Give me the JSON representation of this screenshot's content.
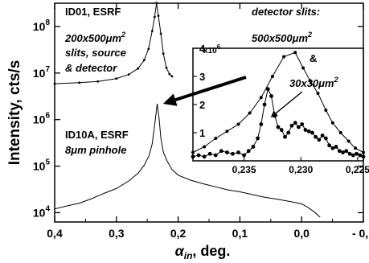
{
  "chart_data": [
    {
      "type": "line",
      "ylabel": "Intensity, cts/s",
      "xlabel_main": "α",
      "xlabel_sub": "in",
      "xlabel_rest": ", deg.",
      "xlim": [
        0.4,
        -0.1
      ],
      "ylim_log10": [
        3.8,
        8.5
      ],
      "x_ticks": [
        {
          "v": 0.4,
          "label": "0,4"
        },
        {
          "v": 0.3,
          "label": "0,3"
        },
        {
          "v": 0.2,
          "label": "0,2"
        },
        {
          "v": 0.1,
          "label": "0,1"
        },
        {
          "v": 0.0,
          "label": "0,0"
        },
        {
          "v": -0.1,
          "label": "- 0,1"
        }
      ],
      "y_ticks": [
        {
          "exp": 4,
          "label": "10",
          "sup": "4"
        },
        {
          "exp": 5,
          "label": "10",
          "sup": "5"
        },
        {
          "exp": 6,
          "label": "10",
          "sup": "6"
        },
        {
          "exp": 7,
          "label": "10",
          "sup": "7"
        },
        {
          "exp": 8,
          "label": "10",
          "sup": "8"
        }
      ],
      "annotations": {
        "id01_title": "ID01, ESRF",
        "id01_line1": "200x500",
        "id01_mu": "μ",
        "id01_m": "m",
        "id01_sup": "2",
        "id01_line2": "slits, source",
        "id01_line3": "& detector",
        "id10_title": "ID10A, ESRF",
        "id10_line1": "8",
        "id10_mu": "μ",
        "id10_line1b": "m pinhole"
      },
      "series": [
        {
          "label": "ID01",
          "x": [
            0.4,
            0.36,
            0.33,
            0.3,
            0.28,
            0.265,
            0.255,
            0.248,
            0.242,
            0.238,
            0.235,
            0.232,
            0.228,
            0.224,
            0.219,
            0.214,
            0.21
          ],
          "y": [
            5900000.0,
            6200000.0,
            6600000.0,
            7600000.0,
            9300000.0,
            12500000.0,
            19000000.0,
            33000000.0,
            80000000.0,
            160000000.0,
            320000000.0,
            170000000.0,
            70000000.0,
            26000000.0,
            13000000.0,
            9500000.0,
            8500000.0
          ]
        },
        {
          "label": "ID10A",
          "x": [
            0.4,
            0.38,
            0.36,
            0.34,
            0.32,
            0.3,
            0.28,
            0.265,
            0.255,
            0.247,
            0.242,
            0.239,
            0.236,
            0.234,
            0.231,
            0.228,
            0.224,
            0.218,
            0.21,
            0.2,
            0.18,
            0.16,
            0.14,
            0.12,
            0.1,
            0.08,
            0.06,
            0.04,
            0.02,
            0.0,
            -0.01,
            -0.02,
            -0.03
          ],
          "y": [
            12000.0,
            14000.0,
            16000.0,
            20000.0,
            26000.0,
            33000.0,
            48000.0,
            70000.0,
            105000.0,
            170000.0,
            300000.0,
            600000.0,
            1300000.0,
            2200000.0,
            1100000.0,
            400000.0,
            200000.0,
            130000.0,
            85000.0,
            64000.0,
            50000.0,
            42000.0,
            36000.0,
            31000.0,
            28000.0,
            24500.0,
            21500.0,
            19500.0,
            17500.0,
            15500.0,
            13000.0,
            10500.0,
            8000.0
          ]
        }
      ]
    },
    {
      "type": "line",
      "title_line": "detector slits:",
      "legend_a": "500x500",
      "legend_b": "30x30",
      "legend_mu": "μ",
      "legend_m": "m",
      "legend_sup": "2",
      "ampersand": "&",
      "y_multiplier_pre": "x10",
      "y_multiplier_exp": "6",
      "xlim": [
        0.2395,
        0.2245
      ],
      "ylim": [
        0,
        4
      ],
      "x_ticks": [
        {
          "v": 0.235,
          "label": "0,235"
        },
        {
          "v": 0.23,
          "label": "0,230"
        },
        {
          "v": 0.225,
          "label": "0,225"
        }
      ],
      "y_ticks": [
        {
          "v": 1,
          "label": "1"
        },
        {
          "v": 2,
          "label": "2"
        },
        {
          "v": 3,
          "label": "3"
        },
        {
          "v": 4,
          "label": "4"
        }
      ],
      "series": [
        {
          "label": "500x500",
          "x": [
            0.2395,
            0.2385,
            0.2375,
            0.2365,
            0.2355,
            0.2345,
            0.2335,
            0.2325,
            0.2315,
            0.2305,
            0.2298,
            0.2292,
            0.2285,
            0.2278,
            0.2272,
            0.2265,
            0.2258,
            0.2252,
            0.2245
          ],
          "y": [
            0.3,
            0.5,
            0.8,
            1.05,
            1.3,
            1.7,
            2.25,
            3.0,
            3.7,
            3.85,
            3.3,
            2.85,
            2.4,
            1.8,
            1.35,
            1.0,
            0.7,
            0.45,
            0.3
          ]
        },
        {
          "label": "30x30",
          "x": [
            0.2395,
            0.239,
            0.2385,
            0.238,
            0.2375,
            0.237,
            0.2365,
            0.236,
            0.2355,
            0.235,
            0.2346,
            0.2342,
            0.2338,
            0.2335,
            0.2332,
            0.2329,
            0.2326,
            0.2323,
            0.232,
            0.2317,
            0.2314,
            0.2311,
            0.2308,
            0.2305,
            0.2302,
            0.2299,
            0.2296,
            0.2293,
            0.229,
            0.2287,
            0.2284,
            0.2281,
            0.2278,
            0.2275,
            0.2272,
            0.2269,
            0.2266,
            0.2263,
            0.226,
            0.2257,
            0.2254,
            0.2251,
            0.2248,
            0.2245
          ],
          "y": [
            0.15,
            0.2,
            0.15,
            0.25,
            0.2,
            0.35,
            0.3,
            0.25,
            0.3,
            0.2,
            0.35,
            0.5,
            0.8,
            1.3,
            2.0,
            2.55,
            2.3,
            1.6,
            1.2,
            1.1,
            0.85,
            1.0,
            1.25,
            1.35,
            1.2,
            1.3,
            1.1,
            1.05,
            1.0,
            0.85,
            0.75,
            0.9,
            0.8,
            0.55,
            0.45,
            0.5,
            0.35,
            0.3,
            0.35,
            0.25,
            0.2,
            0.25,
            0.2,
            0.15
          ]
        }
      ]
    }
  ]
}
